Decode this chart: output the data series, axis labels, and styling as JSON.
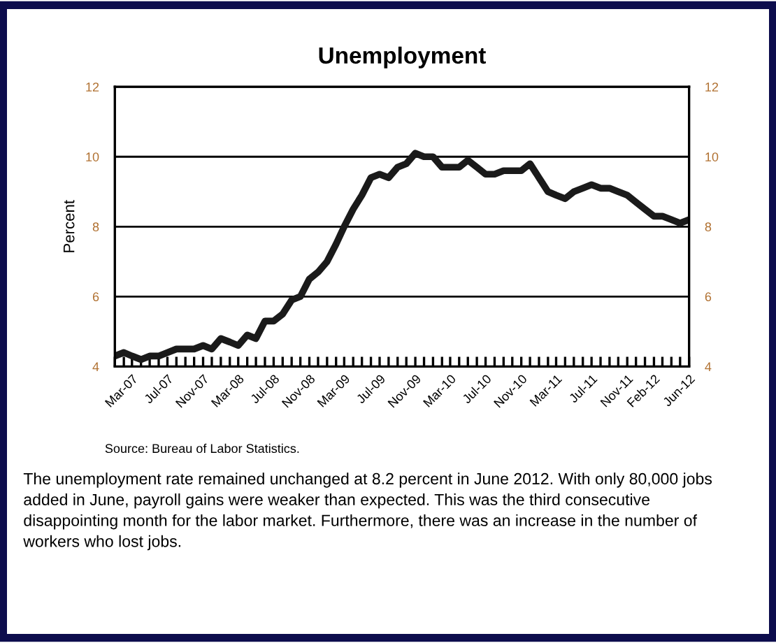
{
  "chart_data": {
    "type": "line",
    "title": "Unemployment",
    "ylabel": "Percent",
    "x": [
      "2007-01",
      "2007-02",
      "2007-03",
      "2007-04",
      "2007-05",
      "2007-06",
      "2007-07",
      "2007-08",
      "2007-09",
      "2007-10",
      "2007-11",
      "2007-12",
      "2008-01",
      "2008-02",
      "2008-03",
      "2008-04",
      "2008-05",
      "2008-06",
      "2008-07",
      "2008-08",
      "2008-09",
      "2008-10",
      "2008-11",
      "2008-12",
      "2009-01",
      "2009-02",
      "2009-03",
      "2009-04",
      "2009-05",
      "2009-06",
      "2009-07",
      "2009-08",
      "2009-09",
      "2009-10",
      "2009-11",
      "2009-12",
      "2010-01",
      "2010-02",
      "2010-03",
      "2010-04",
      "2010-05",
      "2010-06",
      "2010-07",
      "2010-08",
      "2010-09",
      "2010-10",
      "2010-11",
      "2010-12",
      "2011-01",
      "2011-02",
      "2011-03",
      "2011-04",
      "2011-05",
      "2011-06",
      "2011-07",
      "2011-08",
      "2011-09",
      "2011-10",
      "2011-11",
      "2011-12",
      "2012-01",
      "2012-02",
      "2012-03",
      "2012-04",
      "2012-05",
      "2012-06"
    ],
    "series": [
      {
        "color": "#1a1a1a",
        "values": [
          4.3,
          4.4,
          4.3,
          4.2,
          4.3,
          4.3,
          4.4,
          4.5,
          4.5,
          4.5,
          4.6,
          4.5,
          4.8,
          4.7,
          4.6,
          4.9,
          4.8,
          5.3,
          5.3,
          5.5,
          5.9,
          6.0,
          6.5,
          6.7,
          7.0,
          7.5,
          8.0,
          8.5,
          8.9,
          9.4,
          9.5,
          9.4,
          9.7,
          9.8,
          10.1,
          10.0,
          10.0,
          9.7,
          9.7,
          9.7,
          9.9,
          9.7,
          9.5,
          9.5,
          9.6,
          9.6,
          9.6,
          9.8,
          9.4,
          9.0,
          8.9,
          8.8,
          9.0,
          9.1,
          9.2,
          9.1,
          9.1,
          9.0,
          8.9,
          8.7,
          8.5,
          8.3,
          8.3,
          8.2,
          8.1,
          8.2
        ]
      }
    ],
    "xlim": [
      "2007-01",
      "2012-06"
    ],
    "xticks": [
      {
        "value": "2007-03",
        "label": "Mar-07"
      },
      {
        "value": "2007-07",
        "label": "Jul-07"
      },
      {
        "value": "2007-11",
        "label": "Nov-07"
      },
      {
        "value": "2008-03",
        "label": "Mar-08"
      },
      {
        "value": "2008-07",
        "label": "Jul-08"
      },
      {
        "value": "2008-11",
        "label": "Nov-08"
      },
      {
        "value": "2009-03",
        "label": "Mar-09"
      },
      {
        "value": "2009-07",
        "label": "Jul-09"
      },
      {
        "value": "2009-11",
        "label": "Nov-09"
      },
      {
        "value": "2010-03",
        "label": "Mar-10"
      },
      {
        "value": "2010-07",
        "label": "Jul-10"
      },
      {
        "value": "2010-11",
        "label": "Nov-10"
      },
      {
        "value": "2011-03",
        "label": "Mar-11"
      },
      {
        "value": "2011-07",
        "label": "Jul-11"
      },
      {
        "value": "2011-11",
        "label": "Nov-11"
      },
      {
        "value": "2012-02",
        "label": "Feb-12"
      },
      {
        "value": "2012-06",
        "label": "Jun-12"
      }
    ],
    "ylim": [
      4,
      12
    ],
    "yticks": [
      4,
      6,
      8,
      10,
      12
    ],
    "y2lim": [
      4,
      12
    ],
    "y2ticks": [
      4,
      6,
      8,
      10,
      12
    ],
    "grid": "y",
    "marker": "none",
    "line_style": "solid",
    "annotations": [
      "Source: Bureau of Labor Statistics.",
      "The unemployment rate remained unchanged at 8.2 percent in June 2012. With only 80,000 jobs added in June, payroll gains were weaker than expected. This was the third consecutive disappointing month for the labor market. Furthermore, there was an increase in the number of workers who lost jobs."
    ]
  }
}
